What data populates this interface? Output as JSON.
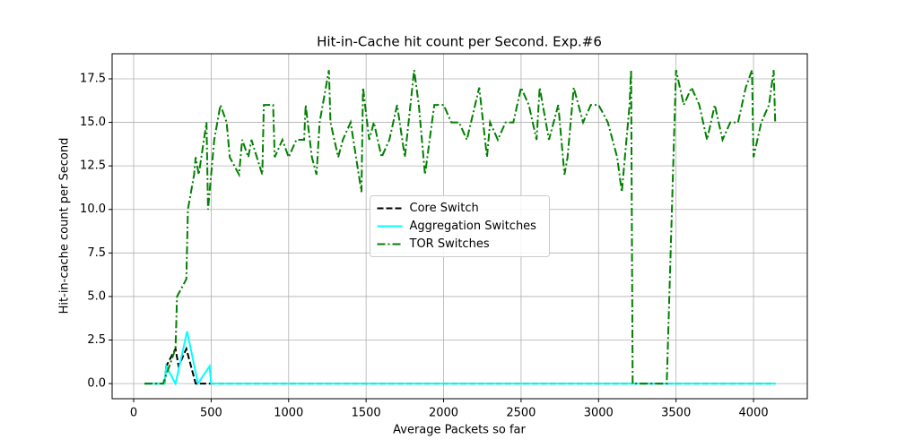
{
  "chart_data": {
    "type": "line",
    "title": "Hit-in-Cache hit count per Second. Exp.#6",
    "x_label": "Average Packets so far",
    "y_label": "Hit-in-cache count per Second",
    "xlim": [
      -139,
      4347
    ],
    "ylim": [
      -0.87,
      18.94
    ],
    "xticks": [
      0,
      500,
      1000,
      1500,
      2000,
      2500,
      3000,
      3500,
      4000
    ],
    "yticks": [
      {
        "value": 0,
        "label": "0.0"
      },
      {
        "value": 2.5,
        "label": "2.5"
      },
      {
        "value": 5,
        "label": "5.0"
      },
      {
        "value": 7.5,
        "label": "7.5"
      },
      {
        "value": 10,
        "label": "10.0"
      },
      {
        "value": 12.5,
        "label": "12.5"
      },
      {
        "value": 15,
        "label": "15.0"
      },
      {
        "value": 17.5,
        "label": "17.5"
      }
    ],
    "grid": true,
    "legend": "center",
    "series": [
      {
        "name": "Core Switch",
        "color": "#000000",
        "dash": "dashed",
        "x": [
          70,
          200,
          210,
          270,
          290,
          340,
          400,
          4140
        ],
        "values": [
          0,
          0,
          1,
          2,
          1,
          2,
          0,
          0
        ]
      },
      {
        "name": "Aggregation Switches",
        "color": "#00ffff",
        "dash": "solid",
        "x": [
          70,
          200,
          210,
          270,
          345,
          415,
          490,
          500,
          4140
        ],
        "values": [
          0,
          0,
          1,
          0,
          3,
          0,
          1,
          0,
          0
        ]
      },
      {
        "name": "TOR Switches",
        "color": "#008000",
        "dash": "dashdot",
        "x": [
          70,
          190,
          270,
          280,
          340,
          350,
          390,
          400,
          420,
          470,
          480,
          500,
          520,
          560,
          600,
          620,
          680,
          700,
          740,
          760,
          830,
          840,
          900,
          910,
          960,
          1000,
          1050,
          1100,
          1110,
          1150,
          1180,
          1200,
          1260,
          1270,
          1320,
          1350,
          1400,
          1470,
          1480,
          1520,
          1550,
          1600,
          1650,
          1700,
          1750,
          1810,
          1840,
          1880,
          1940,
          2000,
          2050,
          2100,
          2150,
          2230,
          2280,
          2300,
          2350,
          2400,
          2450,
          2500,
          2550,
          2600,
          2620,
          2680,
          2740,
          2780,
          2800,
          2840,
          2900,
          2950,
          3000,
          3060,
          3120,
          3150,
          3200,
          3210,
          3220,
          3440,
          3500,
          3550,
          3600,
          3650,
          3700,
          3750,
          3800,
          3850,
          3900,
          3950,
          3990,
          4000,
          4050,
          4100,
          4130,
          4140
        ],
        "values": [
          0,
          0,
          2,
          5,
          6,
          10,
          12,
          13,
          12,
          15,
          10,
          12,
          14,
          16,
          15,
          13,
          12,
          14,
          13,
          14,
          12,
          16,
          16,
          13,
          14,
          13,
          14,
          14,
          16,
          13,
          12,
          15,
          18,
          15,
          13,
          14,
          15,
          11,
          17,
          14,
          15,
          13,
          14,
          16,
          13,
          18,
          16,
          12,
          16,
          16,
          15,
          15,
          14,
          17,
          13,
          15,
          14,
          15,
          15,
          17,
          16,
          14,
          17,
          14,
          16,
          12,
          13,
          17,
          15,
          16,
          16,
          15,
          13,
          11,
          16,
          18,
          0,
          0,
          18,
          16,
          17,
          16,
          14,
          16,
          14,
          15,
          15,
          17,
          18,
          13,
          15,
          16,
          18,
          15
        ]
      }
    ]
  }
}
